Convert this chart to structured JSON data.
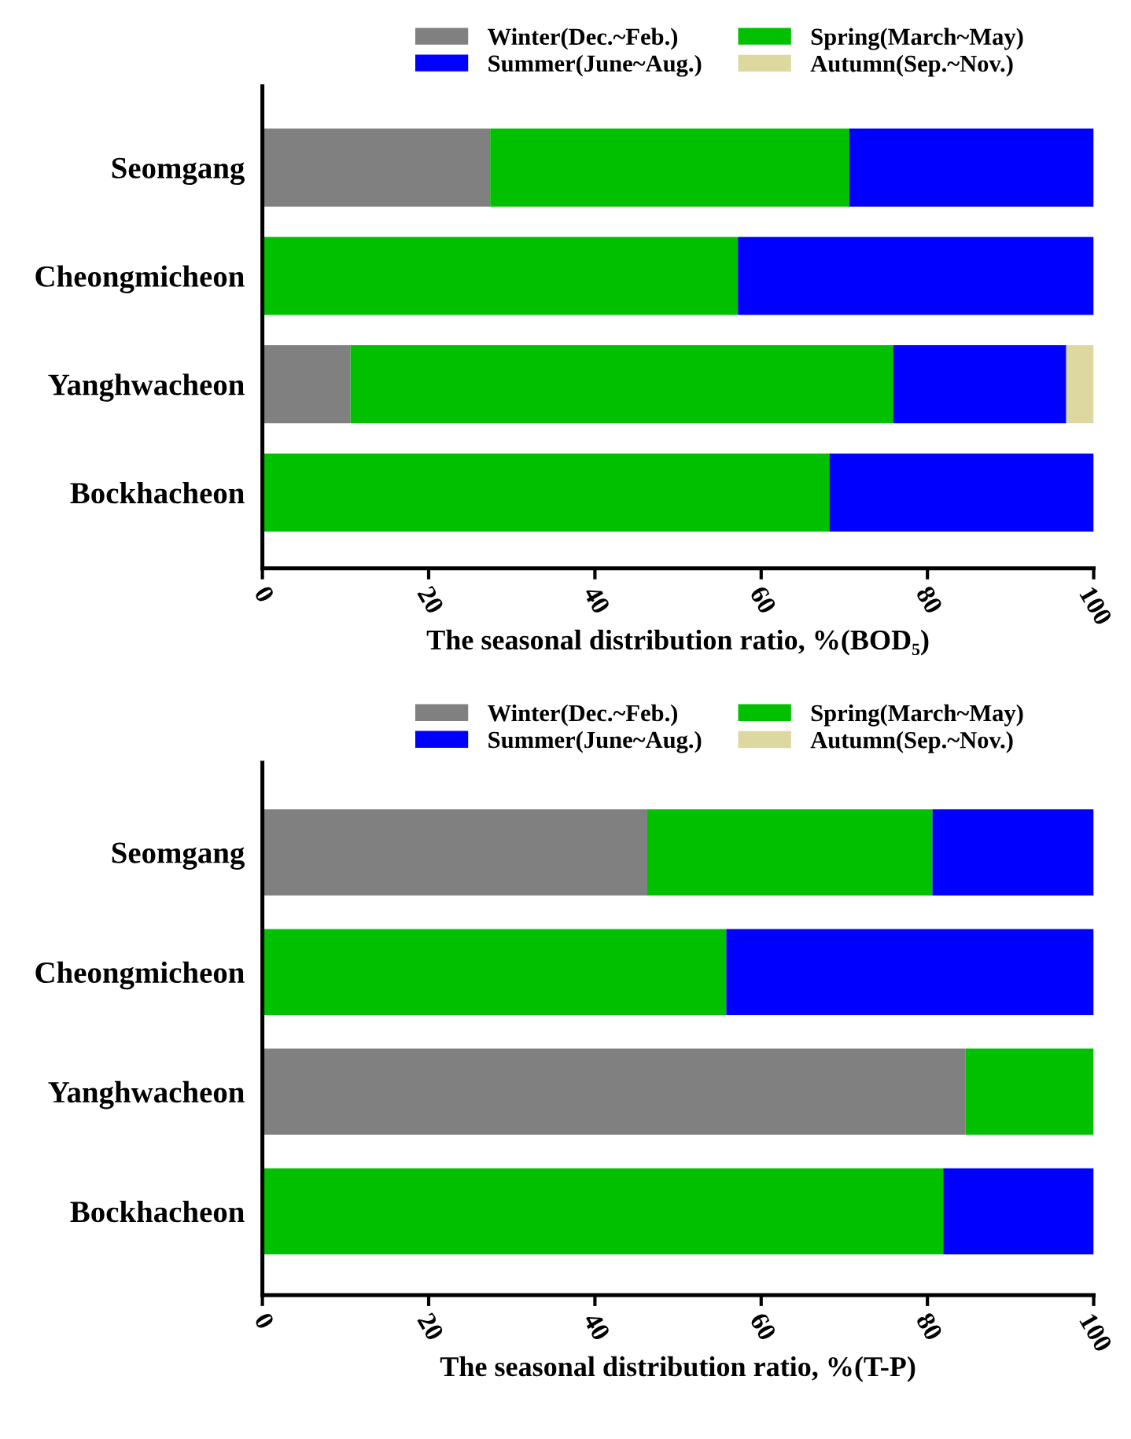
{
  "chart_data": [
    {
      "type": "bar",
      "orientation": "horizontal",
      "stacked": true,
      "xlabel": "The seasonal distribution ratio, %(BOD₅)",
      "categories": [
        "Seomgang",
        "Cheongmicheon",
        "Yanghwacheon",
        "Bockhacheon"
      ],
      "xlim": [
        0,
        100
      ],
      "xticks": [
        0,
        20,
        40,
        60,
        80,
        100
      ],
      "grid": false,
      "legend": "top",
      "series": [
        {
          "name": "Winter(Dec.~Feb.)",
          "color": "#808080",
          "values": [
            27.4,
            0,
            10.6,
            0
          ]
        },
        {
          "name": "Spring(March~May)",
          "color": "#00c000",
          "values": [
            43.2,
            57.2,
            65.3,
            68.2
          ]
        },
        {
          "name": "Summer(June~Aug.)",
          "color": "#0000ff",
          "values": [
            29.4,
            42.8,
            20.8,
            31.8
          ]
        },
        {
          "name": "Autumn(Sep.~Nov.)",
          "color": "#dcd8a0",
          "values": [
            0,
            0,
            3.3,
            0
          ]
        }
      ]
    },
    {
      "type": "bar",
      "orientation": "horizontal",
      "stacked": true,
      "xlabel": "The seasonal distribution ratio, %(T-P)",
      "categories": [
        "Seomgang",
        "Cheongmicheon",
        "Yanghwacheon",
        "Bockhacheon"
      ],
      "xlim": [
        0,
        100
      ],
      "xticks": [
        0,
        20,
        40,
        60,
        80,
        100
      ],
      "grid": false,
      "legend": "top",
      "series": [
        {
          "name": "Winter(Dec.~Feb.)",
          "color": "#808080",
          "values": [
            46.3,
            0,
            84.6,
            0
          ]
        },
        {
          "name": "Spring(March~May)",
          "color": "#00c000",
          "values": [
            34.3,
            55.8,
            15.4,
            81.9
          ]
        },
        {
          "name": "Summer(June~Aug.)",
          "color": "#0000ff",
          "values": [
            19.4,
            44.2,
            0,
            18.1
          ]
        },
        {
          "name": "Autumn(Sep.~Nov.)",
          "color": "#dcd8a0",
          "values": [
            0,
            0,
            0,
            0
          ]
        }
      ]
    }
  ]
}
